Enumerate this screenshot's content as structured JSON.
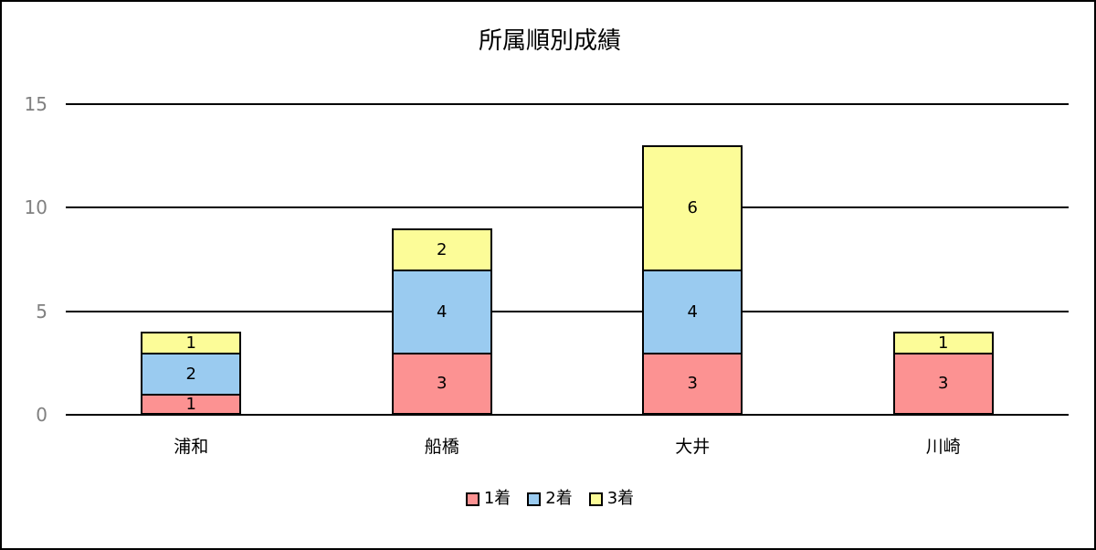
{
  "chart_data": {
    "type": "bar",
    "stacked": true,
    "title": "所属順別成績",
    "categories": [
      "浦和",
      "船橋",
      "大井",
      "川崎"
    ],
    "series": [
      {
        "name": "1着",
        "color": "#FC9292",
        "values": [
          1,
          3,
          3,
          3
        ]
      },
      {
        "name": "2着",
        "color": "#9ACBF0",
        "values": [
          2,
          4,
          4,
          0
        ]
      },
      {
        "name": "3着",
        "color": "#FCFC98",
        "values": [
          1,
          2,
          6,
          1
        ]
      }
    ],
    "totals": [
      4,
      9,
      13,
      4
    ],
    "xlabel": "",
    "ylabel": "",
    "ylim": [
      0,
      15
    ],
    "yticks": [
      0,
      5,
      10,
      15
    ],
    "grid": true,
    "data_labels": true,
    "legend_position": "bottom"
  },
  "styles": {
    "grid_color": "#000000",
    "tick_label_color": "#808080",
    "frame_border_color": "#000000",
    "segment_border_color": "#000000",
    "background": "#FFFFFF"
  }
}
